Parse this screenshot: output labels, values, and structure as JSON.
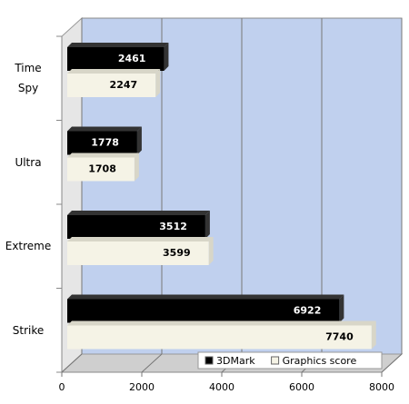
{
  "chart_data": {
    "type": "bar",
    "orientation": "horizontal",
    "categories": [
      "Time Spy",
      "Ultra",
      "Extreme",
      "Strike"
    ],
    "series": [
      {
        "name": "3DMark",
        "color": "#000000",
        "values": [
          2461,
          1778,
          3512,
          6922
        ]
      },
      {
        "name": "Graphics score",
        "color": "#f5f3e6",
        "values": [
          2247,
          1708,
          3599,
          7740
        ]
      }
    ],
    "xlim": [
      0,
      8000
    ],
    "xticks": [
      0,
      2000,
      4000,
      6000,
      8000
    ],
    "grid": true,
    "legend": "bottom-right"
  }
}
